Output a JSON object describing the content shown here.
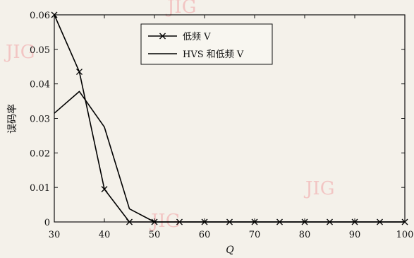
{
  "watermark_text": "JIG",
  "chart_data": {
    "type": "line",
    "xlabel": "Q",
    "ylabel": "误码率",
    "xlim": [
      30,
      100
    ],
    "ylim": [
      0,
      0.06
    ],
    "x_ticks": [
      30,
      40,
      50,
      60,
      70,
      80,
      90,
      100
    ],
    "y_ticks": [
      0,
      0.01,
      0.02,
      0.03,
      0.04,
      0.05,
      0.06
    ],
    "x_tick_labels": [
      "30",
      "40",
      "50",
      "60",
      "70",
      "80",
      "90",
      "100"
    ],
    "y_tick_labels": [
      "0",
      "0.01",
      "0.02",
      "0.03",
      "0.04",
      "0.05",
      "0.06"
    ],
    "grid": false,
    "legend_position": "top-center",
    "series": [
      {
        "name": "低频 V",
        "marker": "x",
        "color": "#000000",
        "x": [
          30,
          35,
          40,
          45,
          50,
          55,
          60,
          65,
          70,
          75,
          80,
          85,
          90,
          95,
          100
        ],
        "y": [
          0.06,
          0.0435,
          0.0095,
          0,
          0,
          0,
          0,
          0,
          0,
          0,
          0,
          0,
          0,
          0,
          0
        ]
      },
      {
        "name": "HVS 和低频 V",
        "marker": "none",
        "color": "#000000",
        "x": [
          30,
          35,
          40,
          45,
          50,
          55,
          60,
          65,
          70,
          75,
          80,
          85,
          90,
          95,
          100
        ],
        "y": [
          0.0315,
          0.0378,
          0.0275,
          0.0038,
          0,
          0,
          0,
          0,
          0,
          0,
          0,
          0,
          0,
          0,
          0
        ]
      }
    ]
  }
}
